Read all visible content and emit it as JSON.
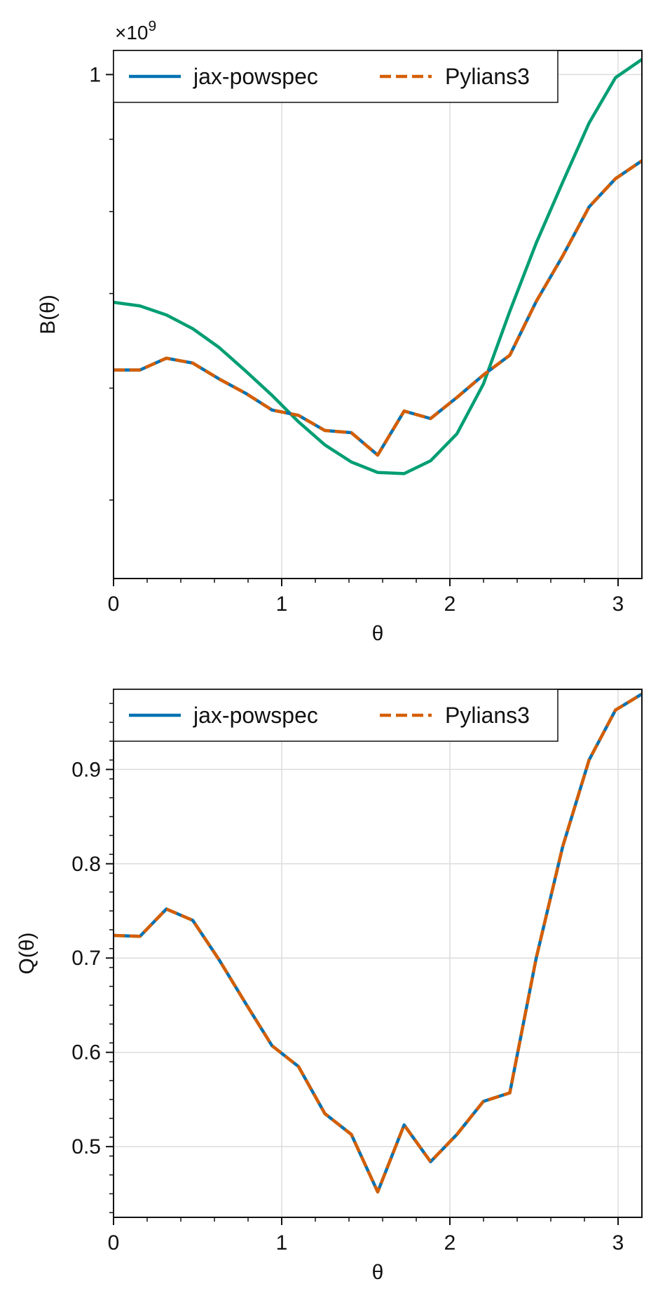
{
  "chart_data": [
    {
      "type": "line",
      "ylabel": "B(θ)",
      "xlabel": "θ",
      "offset_text": "×10",
      "offset_exponent": "9",
      "xlim": [
        0,
        3.1416
      ],
      "ylim": [
        0.44,
        1.04
      ],
      "yscale": "log",
      "grid": true,
      "legend_position": "top-left",
      "x_ticks": [
        0,
        1,
        2,
        3
      ],
      "x_tick_labels": [
        "0",
        "1",
        "2",
        "3"
      ],
      "y_ticks": [
        1.0
      ],
      "y_tick_labels": [
        "1"
      ],
      "y_minor_ticks": [
        0.9,
        0.8,
        0.7,
        0.6,
        0.5
      ],
      "legend": [
        "jax-powspec",
        "Pylians3"
      ],
      "colors": {
        "jax": "#0072b2",
        "pylians": "#d55e00",
        "model": "#009e73"
      },
      "x": [
        0,
        0.1571,
        0.3142,
        0.4712,
        0.6283,
        0.7854,
        0.9425,
        1.0996,
        1.2566,
        1.4137,
        1.5708,
        1.7279,
        1.885,
        2.042,
        2.1991,
        2.3562,
        2.5133,
        2.6704,
        2.8274,
        2.9845,
        3.1416
      ],
      "series": [
        {
          "name": "jax-powspec",
          "style": "solid",
          "values": [
            0.618,
            0.618,
            0.63,
            0.625,
            0.609,
            0.595,
            0.579,
            0.574,
            0.56,
            0.558,
            0.538,
            0.578,
            0.571,
            0.591,
            0.613,
            0.633,
            0.691,
            0.744,
            0.806,
            0.844,
            0.869
          ]
        },
        {
          "name": "Pylians3",
          "style": "dashed",
          "values": [
            0.618,
            0.618,
            0.63,
            0.625,
            0.609,
            0.595,
            0.579,
            0.574,
            0.56,
            0.558,
            0.538,
            0.578,
            0.571,
            0.591,
            0.613,
            0.633,
            0.691,
            0.744,
            0.806,
            0.844,
            0.869
          ]
        },
        {
          "style": "solid",
          "values": [
            0.69,
            0.686,
            0.676,
            0.661,
            0.641,
            0.617,
            0.593,
            0.568,
            0.547,
            0.532,
            0.523,
            0.522,
            0.533,
            0.557,
            0.604,
            0.68,
            0.76,
            0.839,
            0.924,
            0.995,
            1.025
          ]
        }
      ]
    },
    {
      "type": "line",
      "ylabel": "Q(θ)",
      "xlabel": "θ",
      "xlim": [
        0,
        3.1416
      ],
      "ylim": [
        0.425,
        0.985
      ],
      "grid": true,
      "legend_position": "top-left",
      "x_ticks": [
        0,
        1,
        2,
        3
      ],
      "x_tick_labels": [
        "0",
        "1",
        "2",
        "3"
      ],
      "y_ticks": [
        0.5,
        0.6,
        0.7,
        0.8,
        0.9
      ],
      "y_tick_labels": [
        "0.5",
        "0.6",
        "0.7",
        "0.8",
        "0.9"
      ],
      "legend": [
        "jax-powspec",
        "Pylians3"
      ],
      "colors": {
        "jax": "#0072b2",
        "pylians": "#d55e00"
      },
      "x": [
        0,
        0.1571,
        0.3142,
        0.4712,
        0.6283,
        0.7854,
        0.9425,
        1.0996,
        1.2566,
        1.4137,
        1.5708,
        1.7279,
        1.885,
        2.042,
        2.1991,
        2.3562,
        2.5133,
        2.6704,
        2.8274,
        2.9845,
        3.1416
      ],
      "series": [
        {
          "name": "jax-powspec",
          "style": "solid",
          "values": [
            0.724,
            0.723,
            0.752,
            0.74,
            0.698,
            0.652,
            0.607,
            0.585,
            0.535,
            0.513,
            0.452,
            0.523,
            0.484,
            0.513,
            0.548,
            0.557,
            0.7,
            0.818,
            0.91,
            0.963,
            0.98
          ]
        },
        {
          "name": "Pylians3",
          "style": "dashed",
          "values": [
            0.724,
            0.723,
            0.752,
            0.74,
            0.698,
            0.652,
            0.607,
            0.585,
            0.535,
            0.513,
            0.452,
            0.523,
            0.484,
            0.513,
            0.548,
            0.557,
            0.7,
            0.818,
            0.91,
            0.963,
            0.98
          ]
        }
      ]
    }
  ]
}
